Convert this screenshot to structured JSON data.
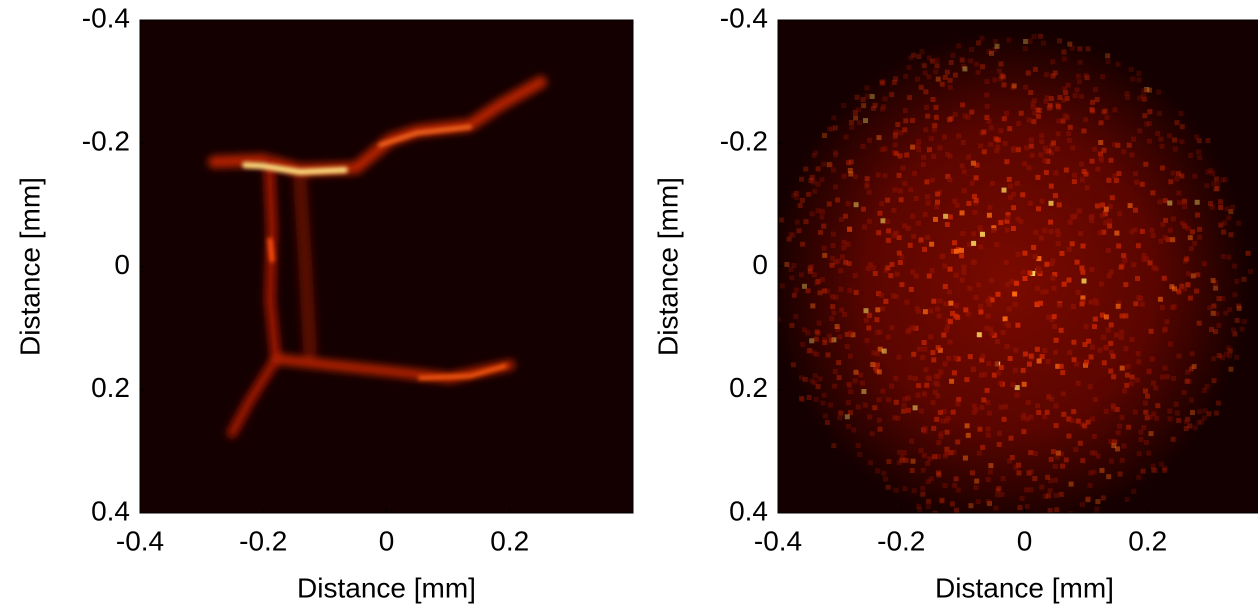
{
  "chart_data": [
    {
      "type": "heatmap",
      "xlabel": "Distance [mm]",
      "ylabel": "Distance [mm]",
      "xlim": [
        -0.4,
        0.4
      ],
      "ylim": [
        -0.4,
        0.4
      ],
      "y_inverted": true,
      "xticks": [
        -0.4,
        -0.2,
        0,
        0.2
      ],
      "yticks": [
        -0.4,
        -0.2,
        0,
        0.2,
        0.4
      ]
    },
    {
      "type": "heatmap",
      "xlabel": "Distance [mm]",
      "ylabel": "Distance [mm]",
      "xlim": [
        -0.4,
        0.4
      ],
      "ylim": [
        -0.4,
        0.4
      ],
      "y_inverted": true,
      "xticks": [
        -0.4,
        -0.2,
        0,
        0.2
      ],
      "yticks": [
        -0.4,
        -0.2,
        0,
        0.2,
        0.4
      ]
    }
  ]
}
